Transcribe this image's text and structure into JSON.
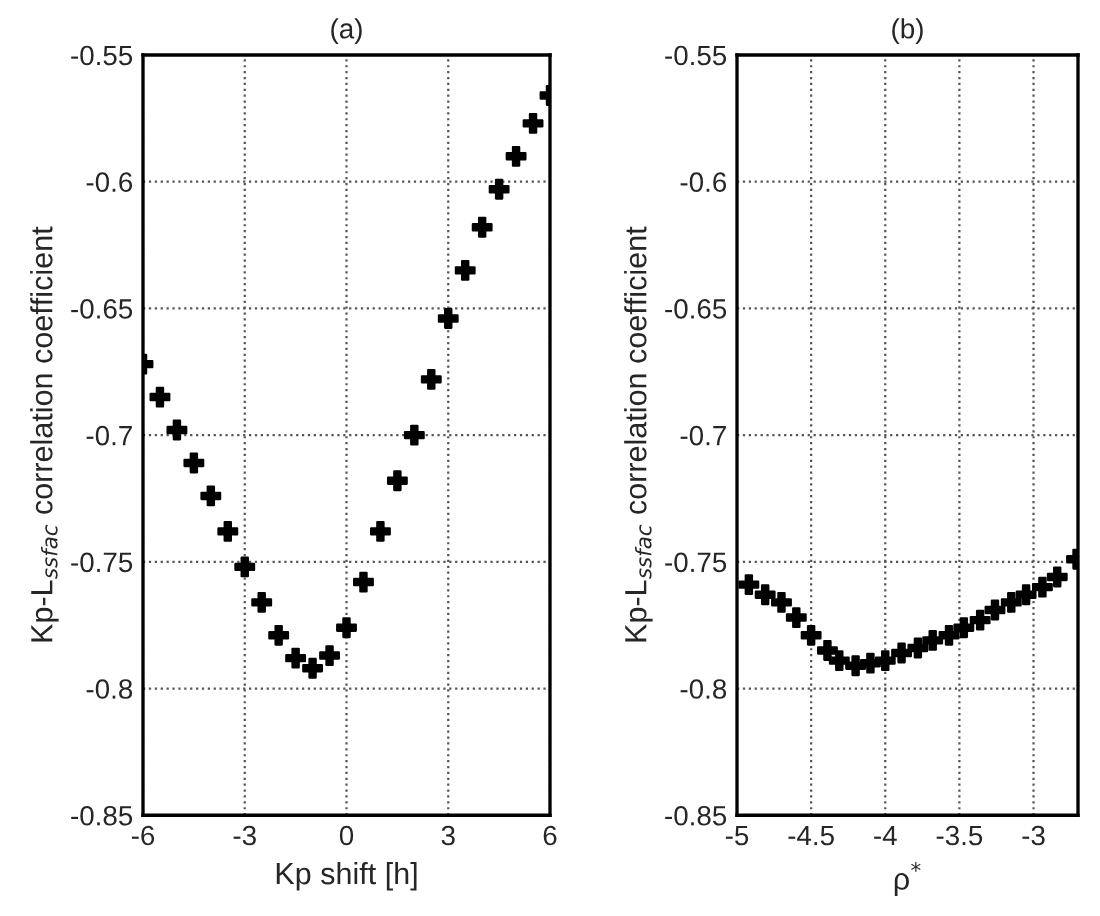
{
  "chart_data": [
    {
      "type": "scatter",
      "title": "(a)",
      "xlabel": "Kp shift [h]",
      "ylabel": "Kp-L$_{ssfac}$ correlation coefficient",
      "marker": "cross",
      "grid": true,
      "xlim": [
        -6,
        6
      ],
      "xticks": [
        -6,
        -3,
        0,
        3,
        6
      ],
      "ylim": [
        -0.85,
        -0.55
      ],
      "yticks": [
        -0.85,
        -0.8,
        -0.75,
        -0.7,
        -0.65,
        -0.6,
        -0.55
      ],
      "x": [
        -6,
        -5.5,
        -5,
        -4.5,
        -4,
        -3.5,
        -3,
        -2.5,
        -2,
        -1.5,
        -1,
        -0.5,
        0,
        0.5,
        1,
        1.5,
        2,
        2.5,
        3,
        3.5,
        4,
        4.5,
        5,
        5.5,
        6
      ],
      "series": [
        {
          "color": "#000000",
          "values": [
            -0.672,
            -0.685,
            -0.698,
            -0.711,
            -0.724,
            -0.738,
            -0.752,
            -0.766,
            -0.779,
            -0.788,
            -0.792,
            -0.787,
            -0.776,
            -0.758,
            -0.738,
            -0.718,
            -0.7,
            -0.678,
            -0.654,
            -0.635,
            -0.618,
            -0.603,
            -0.59,
            -0.577,
            -0.566
          ]
        }
      ]
    },
    {
      "type": "scatter",
      "title": "(b)",
      "xlabel": "ρ$^{*}$",
      "ylabel": "Kp-L$_{ssfac}$ correlation coefficient",
      "marker": "cross",
      "grid": true,
      "xlim": [
        -5,
        -2.7
      ],
      "xticks": [
        -5,
        -4.5,
        -4,
        -3.5,
        -3
      ],
      "ylim": [
        -0.85,
        -0.55
      ],
      "yticks": [
        -0.85,
        -0.8,
        -0.75,
        -0.7,
        -0.65,
        -0.6,
        -0.55
      ],
      "x": [
        -4.92,
        -4.81,
        -4.7,
        -4.6,
        -4.5,
        -4.39,
        -4.31,
        -4.2,
        -4.1,
        -4.0,
        -3.89,
        -3.78,
        -3.68,
        -3.57,
        -3.47,
        -3.36,
        -3.26,
        -3.15,
        -3.05,
        -2.94,
        -2.84,
        -2.71
      ],
      "series": [
        {
          "color": "#000000",
          "values": [
            -0.759,
            -0.763,
            -0.766,
            -0.772,
            -0.779,
            -0.785,
            -0.789,
            -0.791,
            -0.79,
            -0.789,
            -0.786,
            -0.784,
            -0.781,
            -0.779,
            -0.776,
            -0.773,
            -0.769,
            -0.766,
            -0.763,
            -0.76,
            -0.756,
            -0.749
          ]
        }
      ]
    }
  ]
}
